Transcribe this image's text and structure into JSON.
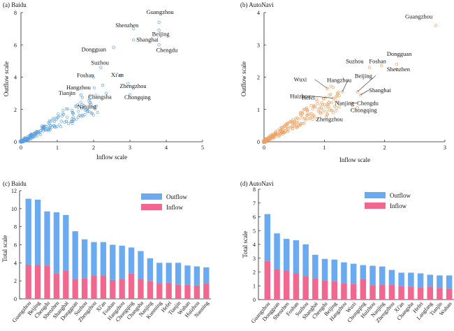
{
  "colors": {
    "baidu_point": "#5aa0e0",
    "autonavi_point": "#f0a060",
    "outflow_bar": "#6aaaf0",
    "inflow_bar": "#f06890",
    "leader": "#222222"
  },
  "chart_data": [
    {
      "id": "a",
      "type": "scatter",
      "title": "(a) Baidu",
      "xlabel": "Inflow scale",
      "ylabel": "Outflow scale",
      "xlim": [
        0,
        5
      ],
      "ylim": [
        0,
        8
      ],
      "xticks": [
        "0",
        "1",
        "2",
        "3",
        "4",
        "5"
      ],
      "yticks": [
        "0",
        "2",
        "4",
        "6",
        "8"
      ],
      "labeled_points": [
        {
          "city": "Guangzhou",
          "x": 3.8,
          "y": 7.4
        },
        {
          "city": "Shenzhen",
          "x": 3.1,
          "y": 7.0
        },
        {
          "city": "Beijing",
          "x": 3.8,
          "y": 6.9
        },
        {
          "city": "Shanghai",
          "x": 3.1,
          "y": 6.3
        },
        {
          "city": "Chengdu",
          "x": 3.8,
          "y": 6.0
        },
        {
          "city": "Dongguan",
          "x": 2.55,
          "y": 5.85
        },
        {
          "city": "Suzhou",
          "x": 2.2,
          "y": 4.6
        },
        {
          "city": "Foshan",
          "x": 2.0,
          "y": 4.0
        },
        {
          "city": "Xi'an",
          "x": 2.75,
          "y": 4.1
        },
        {
          "city": "Zhengzhou",
          "x": 2.95,
          "y": 3.6
        },
        {
          "city": "Hangzhou",
          "x": 2.25,
          "y": 3.5
        },
        {
          "city": "Changsha",
          "x": 2.35,
          "y": 3.0
        },
        {
          "city": "Chongqing",
          "x": 3.0,
          "y": 2.9
        },
        {
          "city": "Tianjin",
          "x": 1.65,
          "y": 2.9
        },
        {
          "city": "Nanjing",
          "x": 1.9,
          "y": 2.4
        }
      ]
    },
    {
      "id": "b",
      "type": "scatter",
      "title": "(b) AutoNavi",
      "xlabel": "Inflow scale",
      "ylabel": "Outflow scale",
      "xlim": [
        0,
        3
      ],
      "ylim": [
        0,
        4
      ],
      "xticks": [
        "0",
        "1",
        "2",
        "3"
      ],
      "yticks": [
        "0",
        "1",
        "2",
        "3",
        "4"
      ],
      "labeled_points": [
        {
          "city": "Guangzhou",
          "x": 2.85,
          "y": 3.6
        },
        {
          "city": "Dongguan",
          "x": 2.2,
          "y": 2.4
        },
        {
          "city": "Foshan",
          "x": 1.95,
          "y": 2.35
        },
        {
          "city": "Suzhou",
          "x": 1.75,
          "y": 2.3
        },
        {
          "city": "Shenzhen",
          "x": 2.2,
          "y": 2.25
        },
        {
          "city": "Hangzhou",
          "x": 1.3,
          "y": 1.55
        },
        {
          "city": "Wuxi",
          "x": 1.05,
          "y": 1.65
        },
        {
          "city": "Beijing",
          "x": 1.55,
          "y": 1.55
        },
        {
          "city": "Huizhou",
          "x": 1.15,
          "y": 1.35
        },
        {
          "city": "Shanghai",
          "x": 1.6,
          "y": 1.45
        },
        {
          "city": "Hefei",
          "x": 0.95,
          "y": 1.05
        },
        {
          "city": "Chengdu",
          "x": 1.45,
          "y": 1.2
        },
        {
          "city": "Nanjing",
          "x": 1.2,
          "y": 1.05
        },
        {
          "city": "Chongqing",
          "x": 1.55,
          "y": 1.05
        },
        {
          "city": "Zhengzhou",
          "x": 1.05,
          "y": 0.85
        }
      ]
    },
    {
      "id": "c",
      "type": "bar",
      "stacked": true,
      "title": "(c) Baidu",
      "ylabel": "Total scale",
      "ylim": [
        0,
        12
      ],
      "yticks": [
        "0",
        "2",
        "4",
        "6",
        "8",
        "10",
        "12"
      ],
      "legend": {
        "position": "top-right",
        "entries": [
          "Outflow",
          "Inflow"
        ]
      },
      "categories": [
        "Guangzhou",
        "Beijing",
        "Chengdu",
        "Shenzhen",
        "Shanghai",
        "Dongguan",
        "Suzhou",
        "Zhengzhou",
        "Xi'an",
        "Foshan",
        "Hangzhou",
        "Chongqing",
        "Changsha",
        "Nanjing",
        "Kunming",
        "Hefei",
        "Tianjin",
        "Wuhan",
        "Huizhou",
        "Nanning"
      ],
      "series": [
        {
          "name": "Inflow",
          "values": [
            3.8,
            3.8,
            3.7,
            2.8,
            3.1,
            2.2,
            2.3,
            2.6,
            2.6,
            2.1,
            2.2,
            2.8,
            2.2,
            2.0,
            1.7,
            1.8,
            1.6,
            1.6,
            1.5,
            1.7
          ]
        },
        {
          "name": "Outflow",
          "values": [
            7.3,
            7.2,
            6.0,
            6.8,
            6.2,
            5.3,
            4.3,
            3.7,
            3.7,
            3.9,
            3.7,
            2.9,
            3.1,
            2.5,
            2.3,
            2.2,
            2.4,
            2.1,
            2.1,
            1.8
          ]
        }
      ]
    },
    {
      "id": "d",
      "type": "bar",
      "stacked": true,
      "title": "(d) AutoNavi",
      "ylabel": "Total scale",
      "ylim": [
        0,
        8
      ],
      "yticks": [
        "0",
        "1",
        "2",
        "3",
        "4",
        "5",
        "6",
        "7",
        "8"
      ],
      "legend": {
        "position": "top-right",
        "entries": [
          "Outflow",
          "Inflow"
        ]
      },
      "categories": [
        "Guangzhou",
        "Dongguan",
        "Shenzhen",
        "Foshan",
        "Suzhou",
        "Shanghai",
        "Chengdu",
        "Beijing",
        "Hangzhou",
        "Wuxi",
        "Chongqing",
        "Huizhou",
        "Nanjing",
        "Zhengzhou",
        "Xi'an",
        "Changsha",
        "Hefei",
        "Langfang",
        "Tianjin",
        "Wuhan"
      ],
      "series": [
        {
          "name": "Inflow",
          "values": [
            2.8,
            2.2,
            2.1,
            1.9,
            1.7,
            1.55,
            1.4,
            1.35,
            1.2,
            1.15,
            1.5,
            1.05,
            1.1,
            1.1,
            1.0,
            0.95,
            0.9,
            0.95,
            0.85,
            0.8
          ]
        },
        {
          "name": "Outflow",
          "values": [
            3.4,
            2.6,
            2.3,
            2.4,
            2.3,
            1.7,
            1.55,
            1.55,
            1.5,
            1.45,
            1.0,
            1.4,
            1.3,
            1.05,
            0.95,
            1.0,
            1.0,
            0.85,
            0.9,
            0.95
          ]
        }
      ]
    }
  ]
}
